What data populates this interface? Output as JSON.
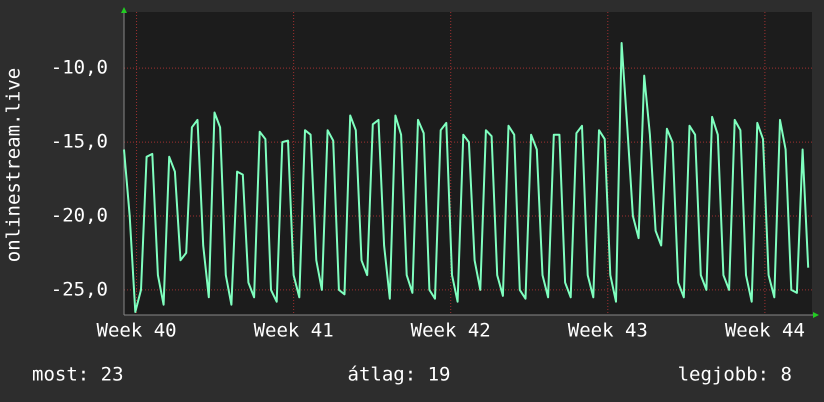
{
  "chart_data": {
    "type": "line",
    "ylabel": "onlinestream.live",
    "x": [
      39.92,
      39.956,
      39.992,
      40.028,
      40.064,
      40.1,
      40.136,
      40.172,
      40.208,
      40.244,
      40.28,
      40.316,
      40.352,
      40.388,
      40.424,
      40.46,
      40.496,
      40.532,
      40.568,
      40.604,
      40.64,
      40.676,
      40.712,
      40.748,
      40.784,
      40.82,
      40.856,
      40.892,
      40.928,
      40.964,
      41,
      41.036,
      41.072,
      41.108,
      41.144,
      41.18,
      41.216,
      41.252,
      41.288,
      41.324,
      41.36,
      41.396,
      41.432,
      41.468,
      41.504,
      41.54,
      41.576,
      41.612,
      41.648,
      41.684,
      41.72,
      41.756,
      41.792,
      41.828,
      41.864,
      41.9,
      41.936,
      41.972,
      42.008,
      42.044,
      42.08,
      42.116,
      42.152,
      42.188,
      42.224,
      42.26,
      42.296,
      42.332,
      42.368,
      42.404,
      42.44,
      42.476,
      42.512,
      42.548,
      42.584,
      42.62,
      42.656,
      42.692,
      42.728,
      42.764,
      42.8,
      42.836,
      42.872,
      42.908,
      42.944,
      42.98,
      43.016,
      43.052,
      43.088,
      43.124,
      43.16,
      43.196,
      43.232,
      43.268,
      43.304,
      43.34,
      43.376,
      43.412,
      43.448,
      43.484,
      43.52,
      43.556,
      43.592,
      43.628,
      43.664,
      43.7,
      43.736,
      43.772,
      43.808,
      43.844,
      43.88,
      43.916,
      43.952,
      43.988,
      44.024,
      44.06,
      44.096,
      44.132,
      44.168,
      44.204,
      44.24,
      44.276
    ],
    "values": [
      -15.5,
      -20,
      -26.5,
      -25,
      -16,
      -15.8,
      -24,
      -26,
      -16,
      -17,
      -23,
      -22.5,
      -14,
      -13.5,
      -22,
      -25.5,
      -13,
      -14,
      -24,
      -26,
      -17,
      -17.2,
      -24.5,
      -25.5,
      -14.3,
      -14.8,
      -25,
      -25.8,
      -15,
      -14.9,
      -24,
      -25.5,
      -14.2,
      -14.5,
      -23,
      -25,
      -14.2,
      -14.9,
      -25,
      -25.3,
      -13.2,
      -14.2,
      -23,
      -24,
      -13.8,
      -13.5,
      -22,
      -25.6,
      -13.2,
      -14.5,
      -24,
      -25.2,
      -13.5,
      -14.4,
      -25,
      -25.6,
      -14.2,
      -13.7,
      -24,
      -25.8,
      -14.5,
      -15,
      -23,
      -25,
      -14.2,
      -14.6,
      -24,
      -25.4,
      -13.9,
      -14.5,
      -25,
      -25.6,
      -14.5,
      -15.5,
      -24,
      -25.5,
      -14.5,
      -14.5,
      -24.5,
      -25.5,
      -14.4,
      -13.9,
      -24,
      -25.5,
      -14.2,
      -14.8,
      -24,
      -25.8,
      -8.3,
      -14,
      -20,
      -21.5,
      -10.5,
      -14.5,
      -21,
      -22,
      -14.1,
      -15,
      -24.5,
      -25.5,
      -13.9,
      -14.5,
      -24,
      -25,
      -13.3,
      -14.5,
      -24,
      -25,
      -13.5,
      -14.2,
      -24,
      -25.8,
      -13.7,
      -14.8,
      -24,
      -25.5,
      -13.5,
      -15.5,
      -25,
      -25.2,
      -15.5,
      -23.5
    ],
    "color": "#7fffbf",
    "xlim": [
      39.92,
      44.3
    ],
    "xticks": [
      {
        "value": 40,
        "label": "Week 40"
      },
      {
        "value": 41,
        "label": "Week 41"
      },
      {
        "value": 42,
        "label": "Week 42"
      },
      {
        "value": 43,
        "label": "Week 43"
      },
      {
        "value": 44,
        "label": "Week 44"
      }
    ],
    "ylim": [
      -26.7,
      -6.2
    ],
    "yticks": [
      {
        "value": -10,
        "label": "-10,0"
      },
      {
        "value": -15,
        "label": "-15,0"
      },
      {
        "value": -20,
        "label": "-20,0"
      },
      {
        "value": -25,
        "label": "-25,0"
      }
    ],
    "grid": true,
    "stats": [
      "most: 23",
      "átlag: 19",
      "legjobb: 8"
    ]
  }
}
